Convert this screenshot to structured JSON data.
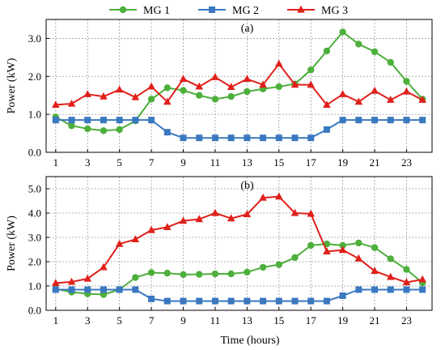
{
  "chart_data": {
    "type": "line",
    "legend": {
      "placement": "top-center",
      "entries": [
        {
          "name": "MG 1",
          "color": "#4daf3c",
          "marker": "circle"
        },
        {
          "name": "MG 2",
          "color": "#3a78c0",
          "marker": "square"
        },
        {
          "name": "MG 3",
          "color": "#e0201b",
          "marker": "triangle"
        }
      ]
    },
    "xlabel": "Time (hours)",
    "x": [
      1,
      2,
      3,
      4,
      5,
      6,
      7,
      8,
      9,
      10,
      11,
      12,
      13,
      14,
      15,
      16,
      17,
      18,
      19,
      20,
      21,
      22,
      23,
      24
    ],
    "xticks": [
      1,
      3,
      5,
      7,
      9,
      11,
      13,
      15,
      17,
      19,
      21,
      23
    ],
    "grid": true,
    "panels": [
      {
        "label": "(a)",
        "ylabel": "Power (kW)",
        "ylim": [
          0,
          3.5
        ],
        "yticks": [
          0.0,
          1.0,
          2.0,
          3.0
        ],
        "series": [
          {
            "name": "MG 1",
            "values": [
              0.93,
              0.7,
              0.62,
              0.57,
              0.6,
              0.83,
              1.4,
              1.7,
              1.63,
              1.5,
              1.4,
              1.47,
              1.6,
              1.67,
              1.73,
              1.8,
              2.17,
              2.67,
              3.17,
              2.85,
              2.65,
              2.37,
              1.87,
              1.4
            ]
          },
          {
            "name": "MG 2",
            "values": [
              0.85,
              0.85,
              0.85,
              0.85,
              0.85,
              0.85,
              0.85,
              0.53,
              0.38,
              0.38,
              0.38,
              0.38,
              0.38,
              0.38,
              0.38,
              0.38,
              0.38,
              0.6,
              0.85,
              0.85,
              0.85,
              0.85,
              0.85,
              0.85
            ]
          },
          {
            "name": "MG 3",
            "values": [
              1.25,
              1.28,
              1.53,
              1.47,
              1.65,
              1.45,
              1.73,
              1.33,
              1.93,
              1.73,
              1.98,
              1.72,
              1.93,
              1.78,
              2.33,
              1.78,
              1.78,
              1.25,
              1.53,
              1.33,
              1.62,
              1.38,
              1.6,
              1.38
            ]
          }
        ]
      },
      {
        "label": "(b)",
        "ylabel": "Power (kW)",
        "ylim": [
          0,
          5.5
        ],
        "yticks": [
          0.0,
          1.0,
          2.0,
          3.0,
          4.0,
          5.0
        ],
        "series": [
          {
            "name": "MG 1",
            "values": [
              0.88,
              0.75,
              0.68,
              0.65,
              0.85,
              1.35,
              1.55,
              1.53,
              1.47,
              1.48,
              1.5,
              1.5,
              1.57,
              1.77,
              1.88,
              2.17,
              2.67,
              2.73,
              2.67,
              2.77,
              2.58,
              2.12,
              1.68,
              1.13
            ]
          },
          {
            "name": "MG 2",
            "values": [
              0.85,
              0.85,
              0.85,
              0.85,
              0.85,
              0.85,
              0.47,
              0.38,
              0.38,
              0.38,
              0.38,
              0.38,
              0.38,
              0.38,
              0.38,
              0.38,
              0.38,
              0.38,
              0.6,
              0.85,
              0.85,
              0.85,
              0.85,
              0.85
            ]
          },
          {
            "name": "MG 3",
            "values": [
              1.12,
              1.17,
              1.3,
              1.77,
              2.73,
              2.92,
              3.3,
              3.42,
              3.68,
              3.75,
              4.0,
              3.78,
              3.95,
              4.63,
              4.68,
              4.0,
              3.97,
              2.42,
              2.48,
              2.13,
              1.62,
              1.37,
              1.15,
              1.27
            ]
          }
        ]
      }
    ]
  }
}
